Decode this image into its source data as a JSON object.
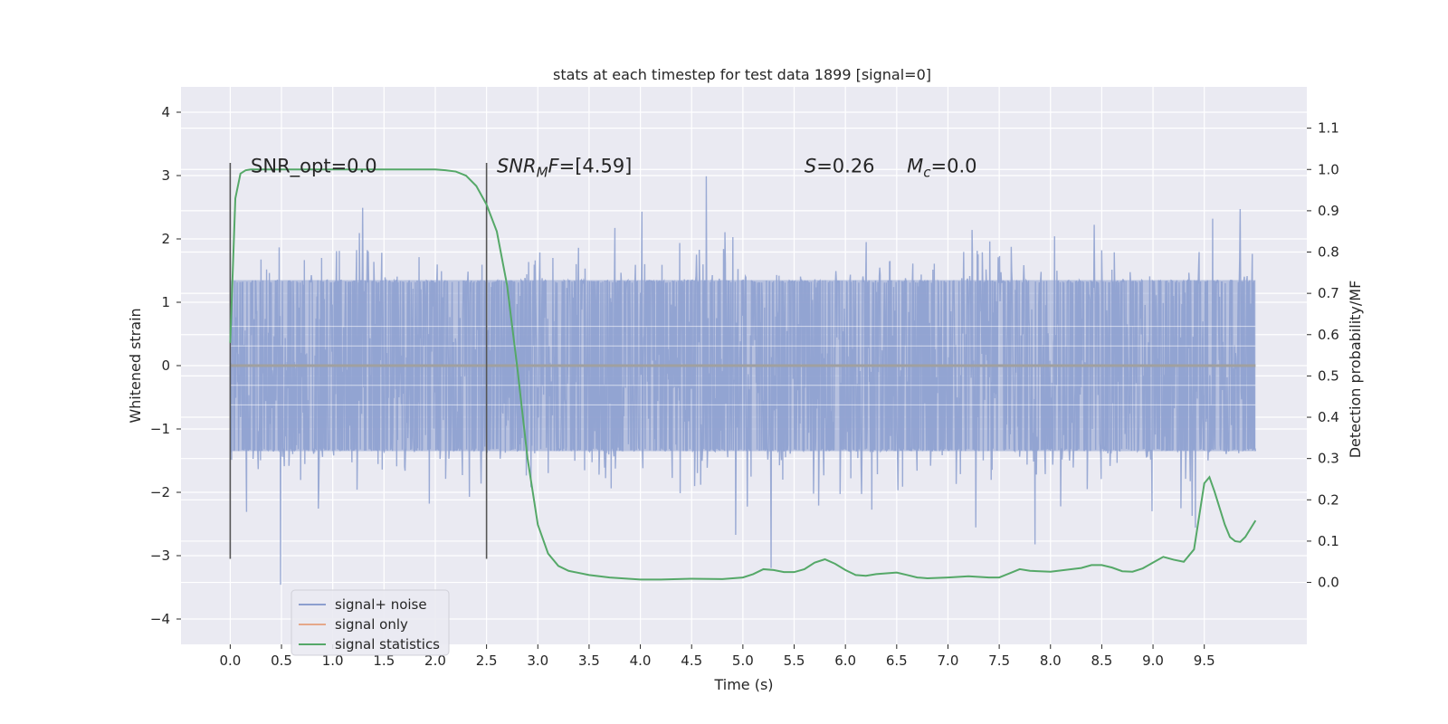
{
  "chart_data": {
    "type": "line",
    "title": "stats at each timestep for test data 1899 [signal=0]",
    "xlabel": "Time (s)",
    "ylabel": "Whitened strain",
    "ylabel_right": "Detection probability/MF",
    "xlim": [
      -0.48,
      10.5
    ],
    "ylim": [
      -4.4,
      4.4
    ],
    "ylim_right": [
      -0.15,
      1.2
    ],
    "x_ticks": [
      0.0,
      0.5,
      1.0,
      1.5,
      2.0,
      2.5,
      3.0,
      3.5,
      4.0,
      4.5,
      5.0,
      5.5,
      6.0,
      6.5,
      7.0,
      7.5,
      8.0,
      8.5,
      9.0,
      9.5
    ],
    "y_ticks": [
      -4,
      -3,
      -2,
      -1,
      0,
      1,
      2,
      3,
      4
    ],
    "y_ticks_right": [
      0.0,
      0.1,
      0.2,
      0.3,
      0.4,
      0.5,
      0.6,
      0.7,
      0.8,
      0.9,
      1.0,
      1.1
    ],
    "grid": true,
    "legend_position": "lower-left",
    "annotations": [
      {
        "text": "SNR_opt=0.0",
        "x": 0.2
      },
      {
        "text": "SNR_MF=[4.59]",
        "x": 2.6
      },
      {
        "text": "S=0.26",
        "x": 5.6
      },
      {
        "text": "M_c=0.0",
        "x": 6.6
      }
    ],
    "vlines": [
      {
        "x": 0.0,
        "ymin": -3.05,
        "ymax": 3.2
      },
      {
        "x": 2.5,
        "ymin": -3.05,
        "ymax": 3.2
      }
    ],
    "series": [
      {
        "name": "signal+ noise",
        "axis": "left",
        "color": "#8c9fcf",
        "kind": "noise",
        "x_range": [
          0.0,
          10.0
        ],
        "core_amplitude": 1.35,
        "max_amplitude": 4.05
      },
      {
        "name": "signal only",
        "axis": "left",
        "color": "#e6a88a",
        "x": [
          0.0,
          10.0
        ],
        "y": [
          0.0,
          0.0
        ]
      },
      {
        "name": "signal statistics",
        "axis": "right",
        "color": "#55a868",
        "x": [
          0.0,
          0.05,
          0.1,
          0.15,
          0.2,
          0.3,
          0.5,
          1.0,
          1.5,
          2.0,
          2.1,
          2.2,
          2.3,
          2.4,
          2.5,
          2.6,
          2.7,
          2.8,
          2.9,
          3.0,
          3.1,
          3.2,
          3.3,
          3.5,
          3.7,
          4.0,
          4.2,
          4.5,
          4.8,
          5.0,
          5.1,
          5.2,
          5.3,
          5.4,
          5.5,
          5.6,
          5.7,
          5.8,
          5.9,
          6.0,
          6.1,
          6.2,
          6.3,
          6.4,
          6.5,
          6.6,
          6.7,
          6.8,
          7.0,
          7.2,
          7.4,
          7.5,
          7.6,
          7.7,
          7.8,
          8.0,
          8.2,
          8.3,
          8.4,
          8.5,
          8.6,
          8.7,
          8.8,
          8.9,
          9.0,
          9.1,
          9.2,
          9.3,
          9.4,
          9.5,
          9.55,
          9.6,
          9.7,
          9.75,
          9.8,
          9.85,
          9.9,
          9.95,
          10.0
        ],
        "y": [
          0.58,
          0.93,
          0.99,
          0.998,
          1.0,
          1.0,
          1.0,
          1.0,
          1.0,
          1.0,
          0.998,
          0.995,
          0.985,
          0.96,
          0.915,
          0.85,
          0.72,
          0.52,
          0.3,
          0.14,
          0.07,
          0.04,
          0.028,
          0.018,
          0.012,
          0.007,
          0.007,
          0.009,
          0.008,
          0.012,
          0.02,
          0.032,
          0.03,
          0.025,
          0.025,
          0.032,
          0.048,
          0.056,
          0.045,
          0.03,
          0.018,
          0.016,
          0.02,
          0.022,
          0.024,
          0.018,
          0.012,
          0.01,
          0.012,
          0.015,
          0.012,
          0.012,
          0.022,
          0.032,
          0.028,
          0.026,
          0.032,
          0.035,
          0.042,
          0.042,
          0.036,
          0.027,
          0.026,
          0.034,
          0.048,
          0.062,
          0.055,
          0.05,
          0.08,
          0.24,
          0.255,
          0.22,
          0.14,
          0.11,
          0.1,
          0.098,
          0.11,
          0.13,
          0.15
        ]
      }
    ]
  }
}
